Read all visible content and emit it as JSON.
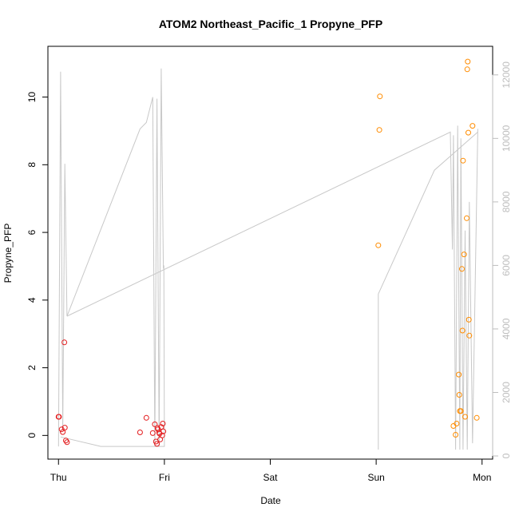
{
  "chart_data": {
    "type": "scatter",
    "title": "ATOM2 Northeast_Pacific_1 Propyne_PFP",
    "xlabel": "Date",
    "ylabel": "Propyne_PFP",
    "x_ticks": [
      "Thu",
      "Fri",
      "Sat",
      "Sun",
      "Mon"
    ],
    "x_range_days": [
      -0.1,
      4.1
    ],
    "y_ticks": [
      0,
      2,
      4,
      6,
      8,
      10
    ],
    "ylim": [
      -0.7,
      11.5
    ],
    "y2_ticks": [
      0,
      2000,
      4000,
      6000,
      8000,
      10000,
      12000
    ],
    "y2lim": [
      -100,
      12900
    ],
    "colors": {
      "points_red": "#e31a1c",
      "points_orange": "#ff8c00",
      "line_gray": "#c8c8c8",
      "axis": "#000000",
      "right_axis": "#bdbdbd"
    },
    "series": [
      {
        "style": "points-red",
        "points": [
          [
            0.0,
            0.55
          ],
          [
            0.005,
            0.55
          ],
          [
            0.03,
            0.18
          ],
          [
            0.04,
            0.1
          ],
          [
            0.055,
            2.75
          ],
          [
            0.06,
            0.23
          ],
          [
            0.07,
            -0.15
          ],
          [
            0.08,
            -0.2
          ],
          [
            0.77,
            0.09
          ],
          [
            0.83,
            0.52
          ],
          [
            0.89,
            0.07
          ],
          [
            0.91,
            0.33
          ],
          [
            0.92,
            -0.18
          ],
          [
            0.93,
            -0.25
          ],
          [
            0.935,
            0.22
          ],
          [
            0.94,
            0.18
          ],
          [
            0.95,
            0.08
          ],
          [
            0.955,
            0.05
          ],
          [
            0.96,
            -0.12
          ],
          [
            0.97,
            0.25
          ],
          [
            0.98,
            0.0
          ],
          [
            0.985,
            0.35
          ],
          [
            0.99,
            0.12
          ]
        ]
      },
      {
        "style": "points-orange",
        "points": [
          [
            3.02,
            5.62
          ],
          [
            3.03,
            9.03
          ],
          [
            3.035,
            10.02
          ],
          [
            3.73,
            0.28
          ],
          [
            3.75,
            0.02
          ],
          [
            3.76,
            0.35
          ],
          [
            3.78,
            1.8
          ],
          [
            3.785,
            1.2
          ],
          [
            3.79,
            0.72
          ],
          [
            3.8,
            0.72
          ],
          [
            3.81,
            4.92
          ],
          [
            3.815,
            3.1
          ],
          [
            3.82,
            8.12
          ],
          [
            3.83,
            5.35
          ],
          [
            3.84,
            0.55
          ],
          [
            3.855,
            6.42
          ],
          [
            3.86,
            10.82
          ],
          [
            3.865,
            11.05
          ],
          [
            3.87,
            8.95
          ],
          [
            3.875,
            3.42
          ],
          [
            3.88,
            2.95
          ],
          [
            3.91,
            9.15
          ],
          [
            3.95,
            0.52
          ]
        ]
      },
      {
        "style": "line-gray",
        "axis": "right",
        "points": [
          [
            0.0,
            300
          ],
          [
            0.02,
            12100
          ],
          [
            0.04,
            800
          ],
          [
            0.06,
            9200
          ],
          [
            0.08,
            4400
          ],
          [
            0.77,
            10300
          ],
          [
            0.83,
            10500
          ],
          [
            0.89,
            11300
          ],
          [
            0.91,
            300
          ],
          [
            0.93,
            11250
          ],
          [
            0.95,
            300
          ],
          [
            0.97,
            12200
          ],
          [
            0.99,
            5900
          ],
          [
            0.995,
            6000
          ],
          [
            1.0,
            300
          ],
          [
            0.4,
            300
          ],
          [
            0.02,
            600
          ]
        ]
      },
      {
        "style": "line-gray",
        "axis": "right",
        "points": [
          [
            0.08,
            4400
          ],
          [
            3.7,
            10200
          ],
          [
            3.72,
            6500
          ],
          [
            3.73,
            10100
          ],
          [
            3.75,
            200
          ],
          [
            3.77,
            10400
          ],
          [
            3.79,
            200
          ],
          [
            3.8,
            10000
          ],
          [
            3.82,
            200
          ],
          [
            3.84,
            7100
          ],
          [
            3.86,
            200
          ],
          [
            3.88,
            8000
          ],
          [
            3.91,
            400
          ],
          [
            3.96,
            10300
          ]
        ]
      },
      {
        "style": "line-gray",
        "axis": "right",
        "points": [
          [
            3.02,
            200
          ],
          [
            3.02,
            5100
          ],
          [
            3.55,
            9000
          ],
          [
            3.96,
            10200
          ]
        ]
      }
    ]
  }
}
